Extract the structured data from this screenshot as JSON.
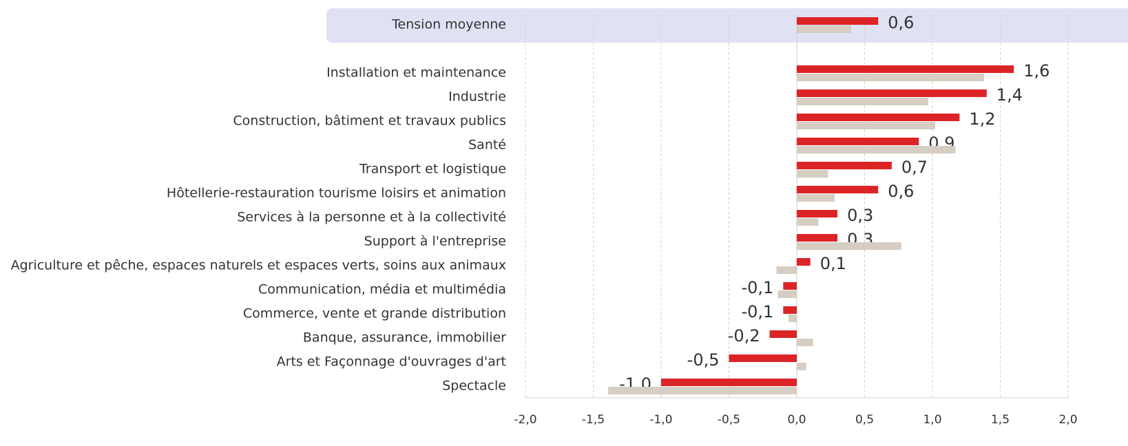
{
  "chart_data": {
    "type": "hbar",
    "categories": [
      "Tension moyenne",
      "Installation et maintenance",
      "Industrie",
      "Construction, bâtiment et travaux publics",
      "Santé",
      "Transport et logistique",
      "Hôtellerie-restauration tourisme loisirs et animation",
      "Services à la personne et à la collectivité",
      "Support à l'entreprise",
      "Agriculture et pêche, espaces naturels et espaces verts, soins aux animaux",
      "Communication, média et multimédia",
      "Commerce, vente et grande distribution",
      "Banque, assurance, immobilier",
      "Arts et Façonnage d'ouvrages d'art",
      "Spectacle"
    ],
    "highlight_category": 0,
    "highlight_color": "#e0e2f4",
    "series": [
      {
        "color": "#dc2427",
        "values": [
          0.6,
          1.6,
          1.4,
          1.2,
          0.9,
          0.7,
          0.6,
          0.3,
          0.3,
          0.1,
          -0.1,
          -0.1,
          -0.2,
          -0.5,
          -1.0
        ],
        "value_labels": [
          "0,6",
          "1,6",
          "1,4",
          "1,2",
          "0,9",
          "0,7",
          "0,6",
          "0,3",
          "0,3",
          "0,1",
          "-0,1",
          "-0,1",
          "-0,2",
          "-0,5",
          "-1,0"
        ]
      },
      {
        "color": "#d6cdc3",
        "values": [
          0.4,
          1.38,
          0.97,
          1.02,
          1.17,
          0.23,
          0.28,
          0.16,
          0.77,
          -0.15,
          -0.14,
          -0.06,
          0.12,
          0.07,
          -1.39
        ]
      }
    ],
    "xlim": [
      -2.0,
      2.0
    ],
    "xticks": [
      {
        "value": -2.0,
        "label": "-2,0"
      },
      {
        "value": -1.5,
        "label": "-1,5"
      },
      {
        "value": -1.0,
        "label": "-1,0"
      },
      {
        "value": -0.5,
        "label": "-0,5"
      },
      {
        "value": 0.0,
        "label": "0,0"
      },
      {
        "value": 0.5,
        "label": "0,5"
      },
      {
        "value": 1.0,
        "label": "1,0"
      },
      {
        "value": 1.5,
        "label": "1,5"
      },
      {
        "value": 2.0,
        "label": "2,0"
      }
    ],
    "grid": true
  }
}
